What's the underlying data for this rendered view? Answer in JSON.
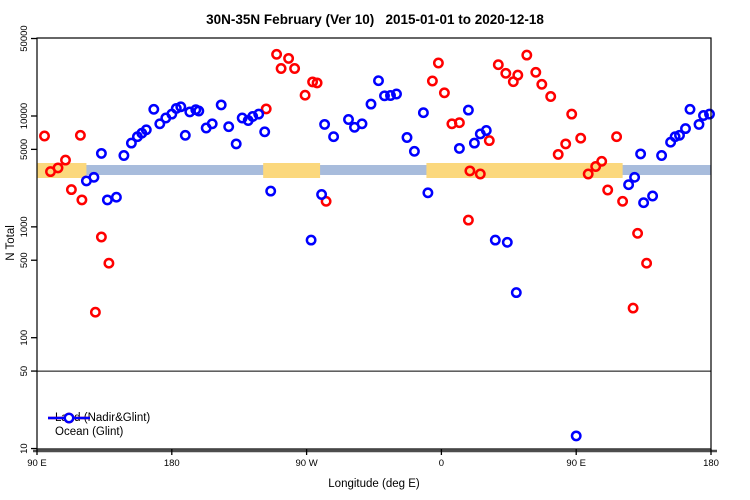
{
  "title": "30N-35N February (Ver 10)   2015-01-01 to 2020-12-18",
  "axes": {
    "x": {
      "label": "Longitude (deg E)",
      "ticks": [
        {
          "t": 0,
          "label": "90 E"
        },
        {
          "t": 90,
          "label": "180"
        },
        {
          "t": 180,
          "label": "90 W"
        },
        {
          "t": 270,
          "label": "0"
        },
        {
          "t": 360,
          "label": "90 E"
        },
        {
          "t": 450,
          "label": "180"
        }
      ]
    },
    "y": {
      "label": "N Total",
      "scale": "log",
      "ticks": [
        {
          "v": 10,
          "label": "10"
        },
        {
          "v": 50,
          "label": "50"
        },
        {
          "v": 100,
          "label": "100"
        },
        {
          "v": 500,
          "label": "500"
        },
        {
          "v": 1000,
          "label": "1000"
        },
        {
          "v": 5000,
          "label": "5000"
        },
        {
          "v": 10000,
          "label": "10000"
        },
        {
          "v": 50000,
          "label": "50000"
        }
      ]
    }
  },
  "reference_line": {
    "value": 50,
    "color": "#000000"
  },
  "legend": [
    {
      "name": "Land (Nadir&Glint)",
      "color": "#ff0000"
    },
    {
      "name": "Ocean (Glint)",
      "color": "#0000ff"
    }
  ],
  "chart_data": {
    "type": "scatter",
    "title": "30N-35N February (Ver 10)   2015-01-01 to 2020-12-18",
    "xlabel": "Longitude (deg E)",
    "ylabel": "N Total",
    "y_scale": "log",
    "ylim": [
      10,
      50000
    ],
    "x_axis_note": "t = degrees eastward along axis starting at 90E; axis spans 450 deg (90E -> 180 -> 90W -> 0 -> 90E -> 180)",
    "grid": false,
    "legend_position": "bottom-left-inside",
    "highlight_bands": [
      {
        "name": "ocean-reference-band",
        "color": "#A8BCDC",
        "value_range": [
          2950,
          3600
        ],
        "t_segments": [
          [
            29,
            450
          ]
        ]
      },
      {
        "name": "land-reference-band",
        "color": "#FBD87D",
        "value_range": [
          2750,
          3800
        ],
        "t_segments": [
          [
            0,
            33
          ],
          [
            151,
            189
          ],
          [
            260,
            391
          ]
        ]
      }
    ],
    "series": [
      {
        "name": "Land (Nadir&Glint)",
        "color": "#ff0000",
        "marker": "open-circle",
        "points": [
          [
            5,
            6600
          ],
          [
            9,
            3150
          ],
          [
            14,
            3400
          ],
          [
            19,
            4000
          ],
          [
            23,
            2170
          ],
          [
            29,
            6700
          ],
          [
            30,
            1750
          ],
          [
            39,
            170
          ],
          [
            43,
            810
          ],
          [
            48,
            470
          ],
          [
            153,
            11600
          ],
          [
            160,
            36000
          ],
          [
            163,
            26800
          ],
          [
            168,
            33100
          ],
          [
            172,
            26800
          ],
          [
            179,
            15400
          ],
          [
            184,
            20300
          ],
          [
            187,
            19900
          ],
          [
            193,
            1700
          ],
          [
            264,
            20700
          ],
          [
            268,
            30100
          ],
          [
            272,
            16200
          ],
          [
            277,
            8500
          ],
          [
            282,
            8700
          ],
          [
            288,
            1150
          ],
          [
            289,
            3200
          ],
          [
            296,
            3000
          ],
          [
            302,
            6000
          ],
          [
            308,
            29000
          ],
          [
            313,
            24300
          ],
          [
            318,
            20400
          ],
          [
            321,
            23400
          ],
          [
            327,
            35400
          ],
          [
            333,
            24800
          ],
          [
            337,
            19300
          ],
          [
            343,
            15000
          ],
          [
            348,
            4500
          ],
          [
            353,
            5600
          ],
          [
            357,
            10400
          ],
          [
            363,
            6300
          ],
          [
            368,
            3000
          ],
          [
            373,
            3500
          ],
          [
            377,
            3900
          ],
          [
            381,
            2150
          ],
          [
            387,
            6500
          ],
          [
            391,
            1700
          ],
          [
            398,
            185
          ],
          [
            401,
            875
          ],
          [
            407,
            470
          ]
        ]
      },
      {
        "name": "Ocean (Glint)",
        "color": "#0000ff",
        "marker": "open-circle",
        "points": [
          [
            33,
            2600
          ],
          [
            38,
            2800
          ],
          [
            43,
            4600
          ],
          [
            47,
            1750
          ],
          [
            53,
            1850
          ],
          [
            58,
            4400
          ],
          [
            63,
            5700
          ],
          [
            67,
            6500
          ],
          [
            70,
            7000
          ],
          [
            73,
            7500
          ],
          [
            78,
            11500
          ],
          [
            82,
            8500
          ],
          [
            86,
            9600
          ],
          [
            90,
            10400
          ],
          [
            93,
            11700
          ],
          [
            96,
            12100
          ],
          [
            99,
            6700
          ],
          [
            102,
            10900
          ],
          [
            106,
            11400
          ],
          [
            108,
            11100
          ],
          [
            113,
            7800
          ],
          [
            117,
            8500
          ],
          [
            123,
            12600
          ],
          [
            128,
            8000
          ],
          [
            133,
            5600
          ],
          [
            137,
            9600
          ],
          [
            141,
            9100
          ],
          [
            144,
            9900
          ],
          [
            148,
            10400
          ],
          [
            152,
            7200
          ],
          [
            156,
            2100
          ],
          [
            183,
            760
          ],
          [
            190,
            1960
          ],
          [
            192,
            8400
          ],
          [
            198,
            6500
          ],
          [
            208,
            9300
          ],
          [
            212,
            7900
          ],
          [
            217,
            8500
          ],
          [
            223,
            12800
          ],
          [
            228,
            20800
          ],
          [
            232,
            15200
          ],
          [
            236,
            15300
          ],
          [
            240,
            15800
          ],
          [
            247,
            6400
          ],
          [
            252,
            4800
          ],
          [
            258,
            10700
          ],
          [
            261,
            2030
          ],
          [
            282,
            5100
          ],
          [
            288,
            11300
          ],
          [
            292,
            5700
          ],
          [
            296,
            6900
          ],
          [
            300,
            7400
          ],
          [
            306,
            760
          ],
          [
            314,
            725
          ],
          [
            320,
            255
          ],
          [
            360,
            13
          ],
          [
            395,
            2400
          ],
          [
            399,
            2800
          ],
          [
            403,
            4550
          ],
          [
            405,
            1650
          ],
          [
            411,
            1900
          ],
          [
            417,
            4400
          ],
          [
            423,
            5800
          ],
          [
            426,
            6500
          ],
          [
            429,
            6700
          ],
          [
            433,
            7700
          ],
          [
            436,
            11500
          ],
          [
            442,
            8400
          ],
          [
            445,
            10100
          ],
          [
            449,
            10400
          ]
        ]
      }
    ]
  }
}
